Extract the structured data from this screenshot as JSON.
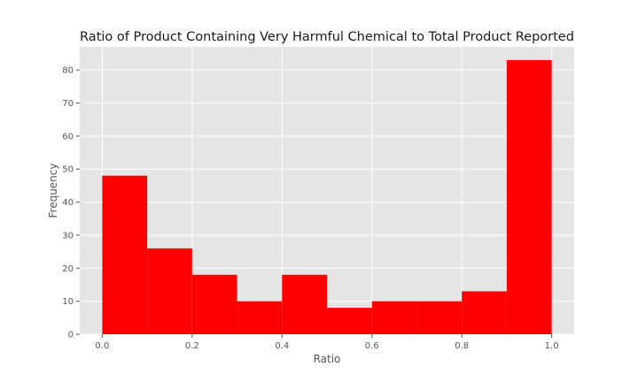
{
  "chart_data": {
    "type": "histogram",
    "title": "Ratio of Product Containing Very Harmful Chemical to Total Product Reported",
    "xlabel": "Ratio",
    "ylabel": "Frequency",
    "xlim": [
      -0.05,
      1.05
    ],
    "ylim": [
      0,
      87
    ],
    "xticks": [
      0.0,
      0.2,
      0.4,
      0.6,
      0.8,
      1.0
    ],
    "xtick_labels": [
      "0.0",
      "0.2",
      "0.4",
      "0.6",
      "0.8",
      "1.0"
    ],
    "yticks": [
      0,
      10,
      20,
      30,
      40,
      50,
      60,
      70,
      80
    ],
    "ytick_labels": [
      "0",
      "10",
      "20",
      "30",
      "40",
      "50",
      "60",
      "70",
      "80"
    ],
    "bin_edges": [
      0.0,
      0.1,
      0.2,
      0.3,
      0.4,
      0.5,
      0.6,
      0.7,
      0.8,
      0.9,
      1.0
    ],
    "values": [
      48,
      26,
      18,
      10,
      18,
      8,
      10,
      10,
      13,
      83
    ],
    "grid": true,
    "colors": {
      "bar": "#ff0000",
      "background": "#e5e5e5",
      "grid": "#ffffff"
    }
  }
}
